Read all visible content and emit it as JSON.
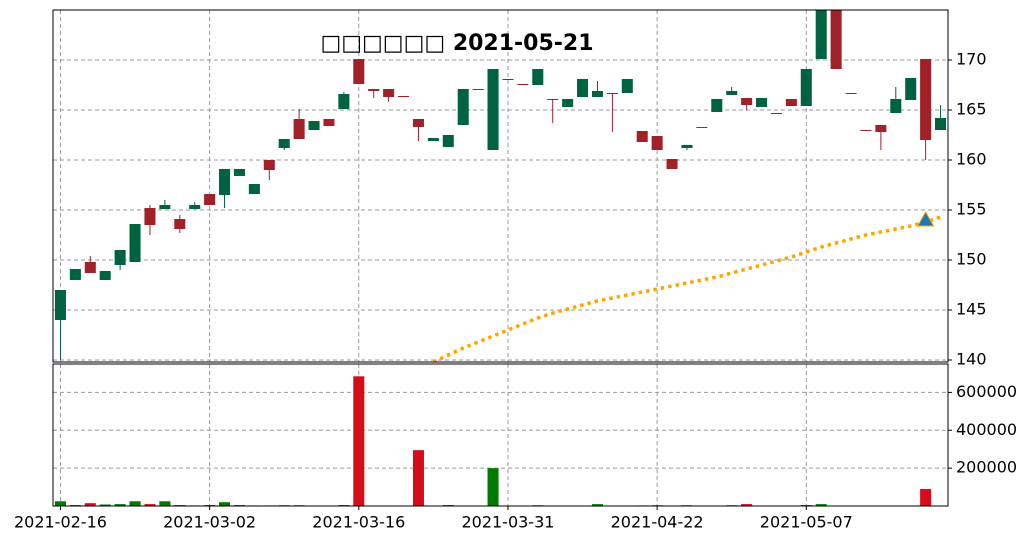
{
  "chart_data": {
    "type": "candlestick",
    "title": "□□□□□□ 2021-05-21",
    "categories": [
      "2021-02-16",
      null,
      null,
      null,
      null,
      null,
      null,
      null,
      null,
      null,
      "2021-03-02",
      null,
      null,
      null,
      null,
      null,
      null,
      null,
      null,
      null,
      "2021-03-16",
      null,
      null,
      null,
      null,
      null,
      null,
      null,
      null,
      null,
      "2021-03-31",
      null,
      null,
      null,
      null,
      null,
      null,
      null,
      null,
      null,
      "2021-04-22",
      null,
      null,
      null,
      null,
      null,
      null,
      null,
      null,
      null,
      "2021-05-07",
      null,
      null,
      null,
      null,
      null,
      null,
      null,
      null,
      null
    ],
    "open": [
      144,
      148,
      149.8,
      148,
      149.5,
      149.8,
      155.2,
      155.1,
      154.1,
      155.1,
      156.6,
      156.5,
      158.4,
      156.6,
      160,
      161.2,
      164.1,
      163,
      164.1,
      165.1,
      170.1,
      167.1,
      167.1,
      166.4,
      164.1,
      161.9,
      161.3,
      163.5,
      167.1,
      161,
      168.1,
      167.6,
      167.5,
      166.1,
      165.3,
      166.3,
      166.3,
      166.7,
      166.7,
      162.9,
      162.4,
      160.1,
      161.2,
      163.3,
      164.8,
      166.5,
      166.2,
      165.3,
      164.7,
      166.1,
      165.4,
      170.1,
      176,
      166.7,
      163,
      163.5,
      164.7,
      166,
      170.1,
      163
    ],
    "high": [
      147,
      149.1,
      150.4,
      148.9,
      151,
      153.6,
      155.5,
      156,
      154.5,
      155.8,
      156.6,
      159.1,
      159.1,
      157.6,
      160,
      162.1,
      165.1,
      163.9,
      164.1,
      166.8,
      170.1,
      167.1,
      167.1,
      166.4,
      164.1,
      162.2,
      162.5,
      167.1,
      167.1,
      169.1,
      168.1,
      167.6,
      169.1,
      166.1,
      166.1,
      168.1,
      167.9,
      166.7,
      168.1,
      162.9,
      162.4,
      160.1,
      161.5,
      163.3,
      166.1,
      167.3,
      166.2,
      166.2,
      164.7,
      166.1,
      169.1,
      176,
      176,
      166.7,
      163,
      163.5,
      167.3,
      168.2,
      170.1,
      165.5
    ],
    "low": [
      140,
      148,
      148.7,
      148,
      149,
      149.8,
      152.5,
      155.1,
      152.7,
      155.1,
      155.5,
      155.2,
      158.4,
      156.6,
      158,
      161,
      162.1,
      163,
      163.4,
      165.1,
      167.6,
      166.2,
      165.8,
      166.3,
      161.9,
      161.9,
      161.3,
      163.5,
      167,
      161,
      168,
      167.5,
      167.5,
      163.7,
      165.3,
      166.3,
      166.3,
      162.8,
      166.7,
      161.8,
      161,
      159.1,
      161,
      163.2,
      164.8,
      166.5,
      165,
      165.3,
      164.6,
      165.4,
      165.4,
      170.1,
      169.1,
      166.6,
      162.9,
      161,
      164.7,
      166,
      160,
      163
    ],
    "close": [
      147,
      149.1,
      148.7,
      148.9,
      151,
      153.6,
      153.5,
      155.5,
      153.1,
      155.5,
      155.5,
      159.1,
      159.1,
      157.6,
      159,
      162.1,
      162.1,
      163.9,
      163.4,
      166.6,
      167.6,
      166.9,
      166.3,
      166.3,
      163.3,
      162.2,
      162.5,
      167.1,
      167,
      169.1,
      168,
      167.5,
      169.1,
      166,
      166.1,
      168.1,
      166.9,
      166.6,
      168.1,
      161.8,
      161,
      159.1,
      161.5,
      163.2,
      166.1,
      166.9,
      165.5,
      166.2,
      164.6,
      165.4,
      169.1,
      176,
      169.1,
      166.6,
      162.9,
      162.8,
      166.1,
      168.2,
      162,
      164.2
    ],
    "up_color": "#006340",
    "down_color": "#a02128",
    "ylim": [
      139.8,
      175
    ],
    "yticks": [
      140,
      145,
      150,
      155,
      160,
      165,
      170
    ],
    "grid": true,
    "lines": [
      {
        "color": "#ffa500",
        "style": "dotted",
        "values": [
          null,
          null,
          null,
          null,
          null,
          null,
          null,
          null,
          null,
          null,
          null,
          null,
          null,
          null,
          null,
          null,
          null,
          null,
          null,
          null,
          null,
          null,
          null,
          null,
          null,
          139.8,
          140.5,
          141.2,
          141.8,
          142.4,
          143,
          143.6,
          144.2,
          144.7,
          145.1,
          145.5,
          145.9,
          146.2,
          146.5,
          146.8,
          147.1,
          147.4,
          147.7,
          148,
          148.3,
          148.7,
          149.1,
          149.5,
          149.9,
          150.3,
          150.8,
          151.3,
          151.7,
          152.1,
          152.5,
          152.8,
          153.1,
          153.4,
          153.8,
          154.3
        ]
      }
    ],
    "markers": [
      {
        "shape": "triangle",
        "color": "#1f77b4",
        "edgecolor": "#ffa500",
        "values": [
          null,
          null,
          null,
          null,
          null,
          null,
          null,
          null,
          null,
          null,
          null,
          null,
          null,
          null,
          null,
          null,
          null,
          null,
          null,
          null,
          null,
          null,
          null,
          null,
          null,
          null,
          null,
          null,
          null,
          null,
          null,
          null,
          null,
          null,
          null,
          null,
          null,
          null,
          null,
          null,
          null,
          null,
          null,
          null,
          null,
          null,
          null,
          null,
          null,
          null,
          null,
          null,
          null,
          null,
          null,
          null,
          null,
          null,
          154,
          null
        ]
      }
    ],
    "volume": {
      "values": [
        25000,
        5000,
        15000,
        8000,
        10000,
        25000,
        10000,
        25000,
        5000,
        3000,
        5000,
        20000,
        5000,
        3000,
        3000,
        4000,
        4000,
        2000,
        2000,
        5000,
        685000,
        2000,
        2000,
        2000,
        295000,
        2000,
        5000,
        2000,
        2000,
        200000,
        2000,
        2000,
        4000,
        2000,
        2000,
        2000,
        10000,
        2000,
        2000,
        3000,
        4000,
        2000,
        4000,
        2000,
        2000,
        4000,
        10000,
        2000,
        2000,
        2000,
        5000,
        10000,
        2000,
        2000,
        2000,
        2000,
        2000,
        2000,
        90000,
        2000
      ],
      "up_color": "#007a00",
      "down_color": "#d50d18",
      "ylim": [
        0,
        750000
      ],
      "yticks": [
        200000,
        400000,
        600000
      ]
    }
  }
}
